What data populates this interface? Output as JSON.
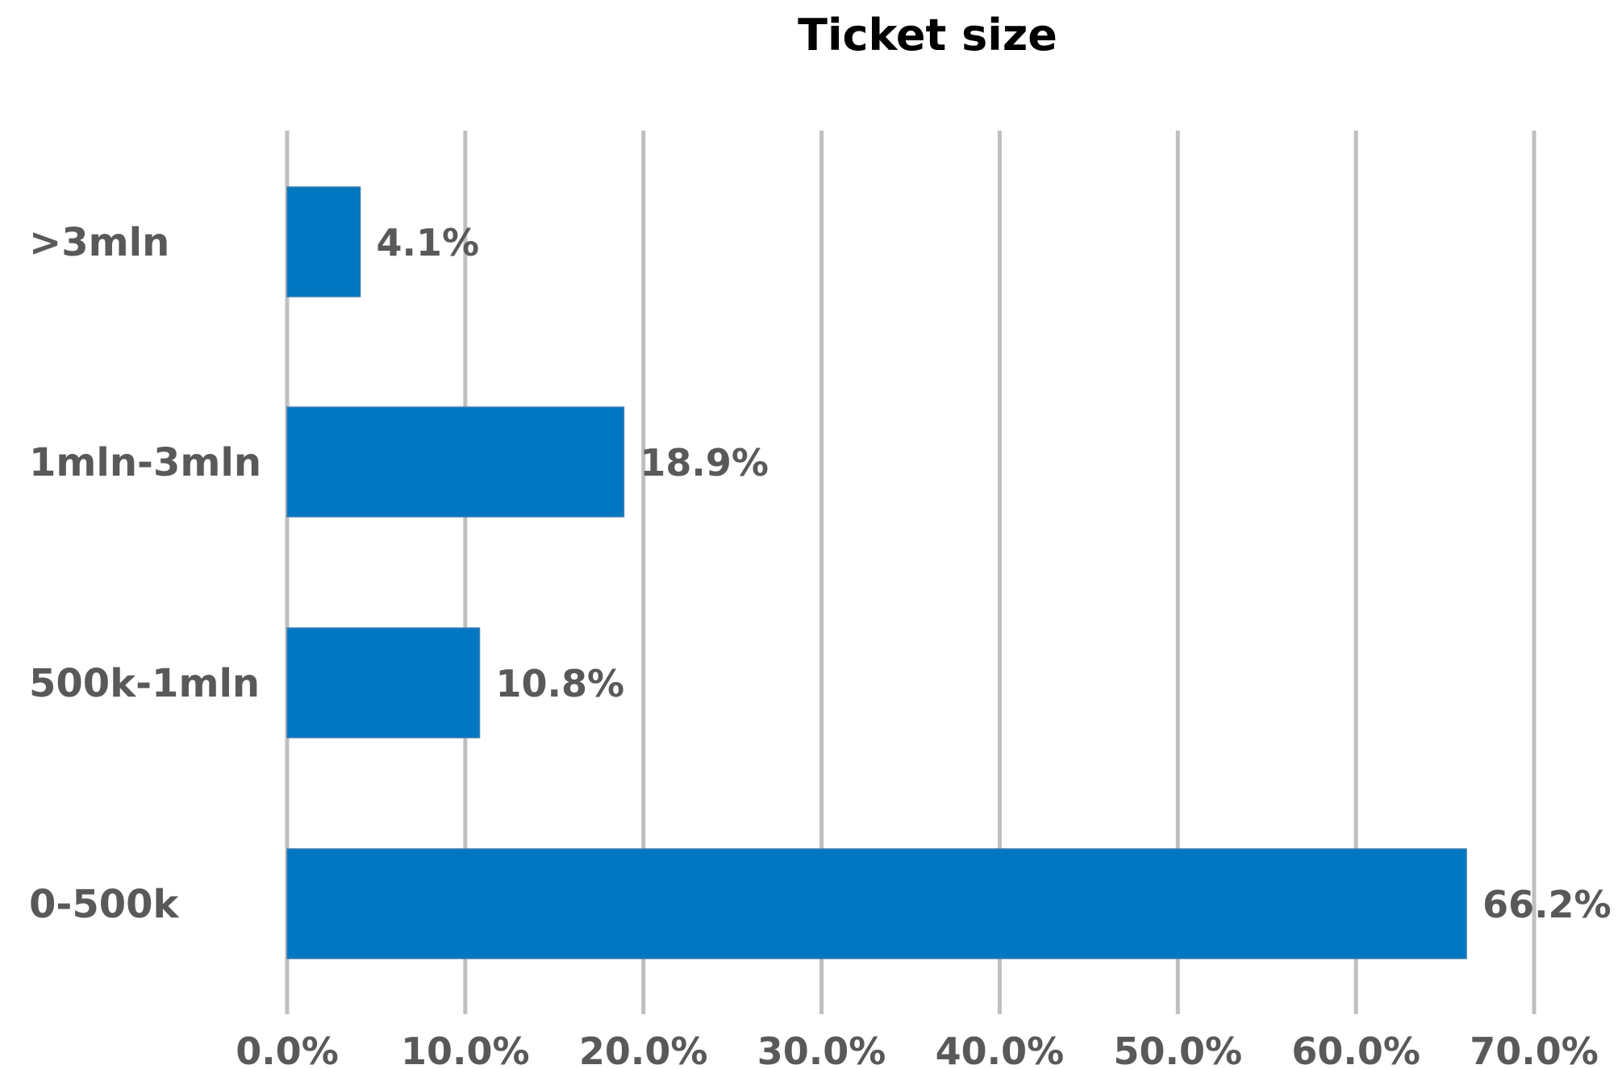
{
  "chart_data": {
    "type": "bar",
    "orientation": "horizontal",
    "title": "Ticket size",
    "categories": [
      ">3mln",
      "1mln-3mln",
      "500k-1mln",
      "0-500k"
    ],
    "values": [
      4.1,
      18.9,
      10.8,
      66.2
    ],
    "value_labels": [
      "4.1%",
      "18.9%",
      "10.8%",
      "66.2%"
    ],
    "xlim": [
      0,
      70
    ],
    "x_ticks": [
      0,
      10,
      20,
      30,
      40,
      50,
      60,
      70
    ],
    "x_tick_labels": [
      "0.0%",
      "10.0%",
      "20.0%",
      "30.0%",
      "40.0%",
      "50.0%",
      "60.0%",
      "70.0%"
    ],
    "xlabel": "",
    "ylabel": "",
    "grid": "vertical",
    "legend": "none",
    "bar_color": "#0077C0"
  }
}
